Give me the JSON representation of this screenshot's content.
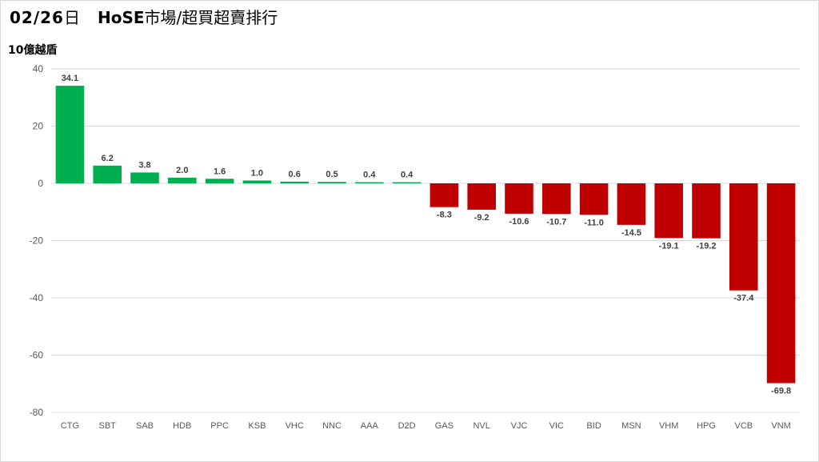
{
  "header": {
    "date": "02/26",
    "day_suffix": "日",
    "market": "HoSE",
    "title_rest": "市場/超買超賣排行"
  },
  "unit_label": "10億越盾",
  "colors": {
    "positive": "#00b050",
    "negative": "#c00000",
    "grid": "#d9d9d9",
    "text": "#595959"
  },
  "chart_data": {
    "type": "bar",
    "title": "",
    "xlabel": "",
    "ylabel": "10億越盾",
    "ylim": [
      -80,
      40
    ],
    "yticks": [
      40,
      20,
      0,
      -20,
      -40,
      -60,
      -80
    ],
    "grid": true,
    "categories": [
      "CTG",
      "SBT",
      "SAB",
      "HDB",
      "PPC",
      "KSB",
      "VHC",
      "NNC",
      "AAA",
      "D2D",
      "GAS",
      "NVL",
      "VJC",
      "VIC",
      "BID",
      "MSN",
      "VHM",
      "HPG",
      "VCB",
      "VNM"
    ],
    "values": [
      34.1,
      6.2,
      3.8,
      2.0,
      1.6,
      1.0,
      0.6,
      0.5,
      0.4,
      0.4,
      -8.3,
      -9.2,
      -10.6,
      -10.7,
      -11.0,
      -14.5,
      -19.1,
      -19.2,
      -37.4,
      -69.8
    ],
    "data_labels": [
      "34.1",
      "6.2",
      "3.8",
      "2.0",
      "1.6",
      "1.0",
      "0.6",
      "0.5",
      "0.4",
      "0.4",
      "-8.3",
      "-9.2",
      "-10.6",
      "-10.7",
      "-11.0",
      "-14.5",
      "-19.1",
      "-19.2",
      "-37.4",
      "-69.8"
    ]
  }
}
